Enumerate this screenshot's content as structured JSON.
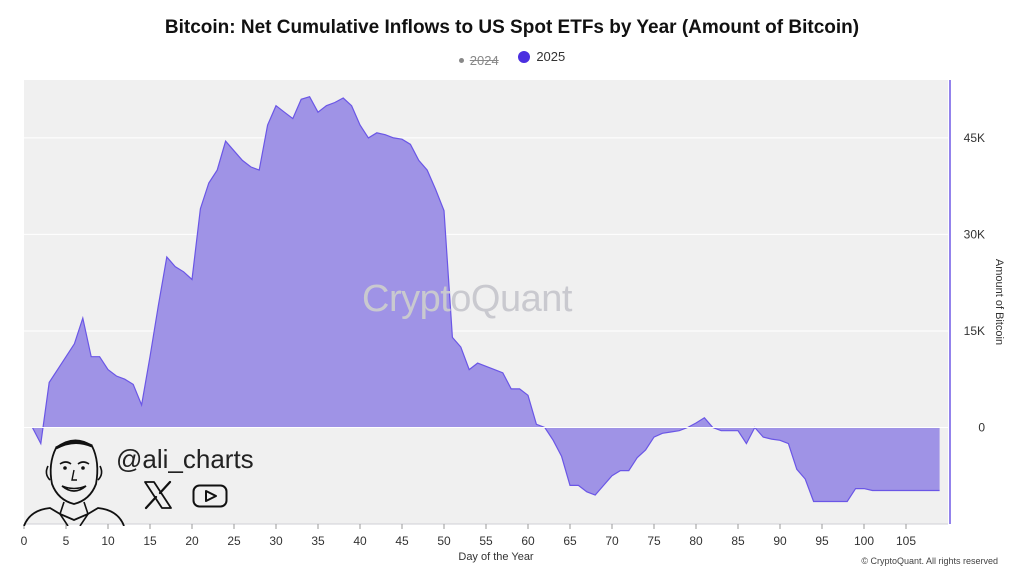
{
  "title": "Bitcoin: Net Cumulative Inflows to US Spot ETFs by Year (Amount of Bitcoin)",
  "legend": [
    {
      "label": "2024",
      "active": false
    },
    {
      "label": "2025",
      "active": true,
      "color": "#4b2fe0"
    }
  ],
  "watermark": "CryptoQuant",
  "handle": "@ali_charts",
  "icons": [
    "x-logo-icon",
    "youtube-icon"
  ],
  "copyright": "© CryptoQuant. All rights reserved",
  "colors": {
    "fill": "#9f93e6",
    "stroke": "#6a56e6",
    "plot_bg": "#f0f0f0",
    "axis": "#4b2fe0"
  },
  "chart_data": {
    "type": "area",
    "title": "Bitcoin: Net Cumulative Inflows to US Spot ETFs by Year (Amount of Bitcoin)",
    "xlabel": "Day of the Year",
    "ylabel": "Amount of Bitcoin",
    "xlim": [
      0,
      110
    ],
    "ylim": [
      -15000,
      54000
    ],
    "x_ticks": [
      0,
      5,
      10,
      15,
      20,
      25,
      30,
      35,
      40,
      45,
      50,
      55,
      60,
      65,
      70,
      75,
      80,
      85,
      90,
      95,
      100,
      105
    ],
    "y_ticks": [
      0,
      15000,
      30000,
      45000
    ],
    "y_tick_labels": [
      "0",
      "15K",
      "30K",
      "45K"
    ],
    "y_axis_side": "right",
    "grid": true,
    "legend_position": "top-center",
    "series": [
      {
        "name": "2025",
        "x": [
          1,
          2,
          3,
          4,
          5,
          6,
          7,
          8,
          9,
          10,
          11,
          12,
          13,
          14,
          15,
          16,
          17,
          18,
          19,
          20,
          21,
          22,
          23,
          24,
          25,
          26,
          27,
          28,
          29,
          30,
          31,
          32,
          33,
          34,
          35,
          36,
          37,
          38,
          39,
          40,
          41,
          42,
          43,
          44,
          45,
          46,
          47,
          48,
          49,
          50,
          51,
          52,
          53,
          54,
          55,
          56,
          57,
          58,
          59,
          60,
          61,
          62,
          63,
          64,
          65,
          66,
          67,
          68,
          69,
          70,
          71,
          72,
          73,
          74,
          75,
          76,
          77,
          78,
          79,
          80,
          81,
          82,
          83,
          84,
          85,
          86,
          87,
          88,
          89,
          90,
          91,
          92,
          93,
          94,
          95,
          96,
          97,
          98,
          99,
          100,
          101,
          102,
          103,
          104,
          105,
          106,
          107,
          108,
          109
        ],
        "y": [
          0,
          -2500,
          7000,
          9000,
          11000,
          13000,
          17000,
          11000,
          11000,
          9000,
          8000,
          7500,
          6700,
          3500,
          11000,
          19000,
          26500,
          25000,
          24200,
          23000,
          34000,
          38000,
          40000,
          44500,
          43000,
          41500,
          40500,
          40000,
          47000,
          50000,
          49000,
          48000,
          51000,
          51400,
          49000,
          50000,
          50500,
          51200,
          50000,
          47000,
          45000,
          45800,
          45500,
          45000,
          44800,
          44000,
          41500,
          40000,
          37000,
          33700,
          14000,
          12500,
          9000,
          10000,
          9500,
          9000,
          8500,
          6000,
          6000,
          5000,
          500,
          0,
          -2000,
          -4500,
          -9000,
          -9000,
          -10000,
          -10500,
          -9000,
          -7500,
          -6700,
          -6700,
          -4700,
          -3500,
          -1500,
          -900,
          -700,
          -500,
          0,
          700,
          1500,
          0,
          -500,
          -500,
          -500,
          -2500,
          0,
          -1500,
          -1800,
          -2000,
          -2500,
          -6500,
          -8000,
          -11500,
          -11500,
          -11500,
          -11500,
          -11500,
          -9500,
          -9500,
          -9800,
          -9800,
          -9800,
          -9800,
          -9800,
          -9800,
          -9800,
          -9800,
          -9800
        ],
        "color": "#6a56e6"
      }
    ]
  }
}
